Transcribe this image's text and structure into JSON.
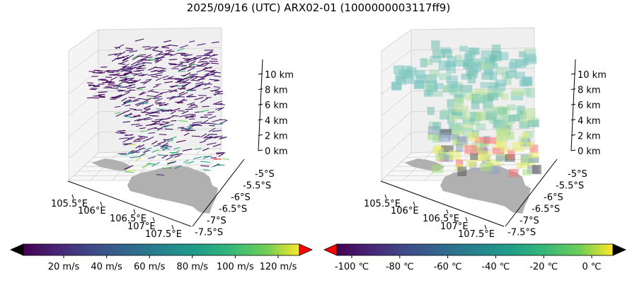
{
  "title": "2025/09/16 (UTC) ARX02-01 (1000000003117ff9)",
  "colors": {
    "land": "#b0b0b0",
    "grid": "#cfcfcf",
    "ocean_tone": "#1a1a1a",
    "extend_low_left": "#000000",
    "extend_high_left": "#ff0000",
    "extend_low_right": "#ff0000",
    "extend_high_right": "#000000"
  },
  "chart_data": [
    {
      "type": "scatter",
      "subtype": "3d-wind-barbs",
      "x_ticks": [
        "105.5°E",
        "106°E",
        "106.5°E",
        "107°E",
        "107.5°E"
      ],
      "y_ticks": [
        "-5°S",
        "-5.5°S",
        "-6°S",
        "-6.5°S",
        "-7°S",
        "-7.5°S"
      ],
      "z_ticks": [
        "0 km",
        "2 km",
        "4 km",
        "6 km",
        "8 km",
        "10 km"
      ],
      "colorbar": {
        "cmap": "viridis",
        "extend": "both",
        "ticks": [
          "20 m/s",
          "40 m/s",
          "60 m/s",
          "80 m/s",
          "100 m/s",
          "120 m/s"
        ]
      }
    },
    {
      "type": "scatter",
      "subtype": "3d-voxels",
      "x_ticks": [
        "105.5°E",
        "106°E",
        "106.5°E",
        "107°E",
        "107.5°E"
      ],
      "y_ticks": [
        "-5°S",
        "-5.5°S",
        "-6°S",
        "-6.5°S",
        "-7°S",
        "-7.5°S"
      ],
      "z_ticks": [
        "0 km",
        "2 km",
        "4 km",
        "6 km",
        "8 km",
        "10 km"
      ],
      "colorbar": {
        "cmap": "viridis",
        "extend": "both",
        "ticks": [
          "-100 ℃",
          "-80 ℃",
          "-60 ℃",
          "-40 ℃",
          "-20 ℃",
          "0 ℃"
        ]
      }
    }
  ]
}
